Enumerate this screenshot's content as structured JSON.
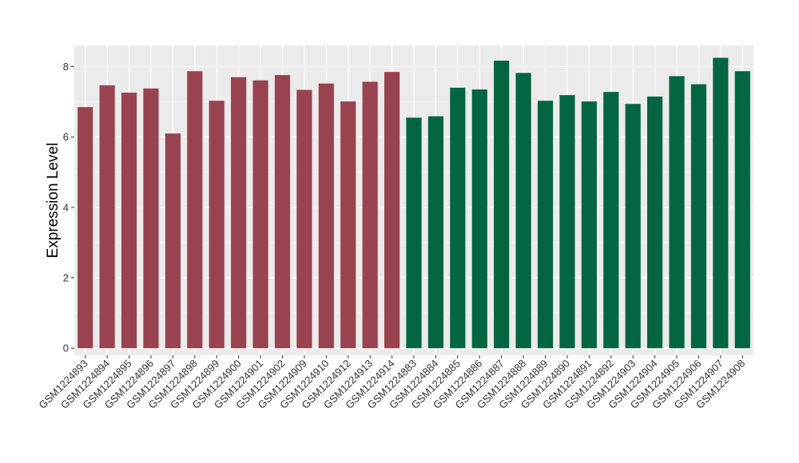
{
  "chart_data": {
    "type": "bar",
    "title": "",
    "xlabel": "",
    "ylabel": "Expression Level",
    "ylim": [
      -0.2,
      8.6
    ],
    "yticks": [
      0,
      2,
      4,
      6,
      8
    ],
    "grid": true,
    "background": "#ebebeb",
    "categories": [
      "GSM1224893",
      "GSM1224894",
      "GSM1224895",
      "GSM1224896",
      "GSM1224897",
      "GSM1224898",
      "GSM1224899",
      "GSM1224900",
      "GSM1224901",
      "GSM1224902",
      "GSM1224909",
      "GSM1224910",
      "GSM1224912",
      "GSM1224913",
      "GSM1224914",
      "GSM1224883",
      "GSM1224884",
      "GSM1224885",
      "GSM1224886",
      "GSM1224887",
      "GSM1224888",
      "GSM1224889",
      "GSM1224890",
      "GSM1224891",
      "GSM1224892",
      "GSM1224903",
      "GSM1224904",
      "GSM1224905",
      "GSM1224906",
      "GSM1224907",
      "GSM1224908"
    ],
    "series": [
      {
        "color": "#9a4350",
        "values": [
          6.85,
          7.47,
          7.26,
          7.38,
          6.1,
          7.87,
          7.03,
          7.7,
          7.61,
          7.76,
          7.34,
          7.52,
          7.01,
          7.57,
          7.85,
          null,
          null,
          null,
          null,
          null,
          null,
          null,
          null,
          null,
          null,
          null,
          null,
          null,
          null,
          null,
          null
        ]
      },
      {
        "color": "#036641",
        "values": [
          null,
          null,
          null,
          null,
          null,
          null,
          null,
          null,
          null,
          null,
          null,
          null,
          null,
          null,
          null,
          6.55,
          6.59,
          7.4,
          7.35,
          8.17,
          7.82,
          7.03,
          7.19,
          7.01,
          7.28,
          6.94,
          7.15,
          7.73,
          7.5,
          8.25,
          7.87
        ]
      }
    ]
  }
}
